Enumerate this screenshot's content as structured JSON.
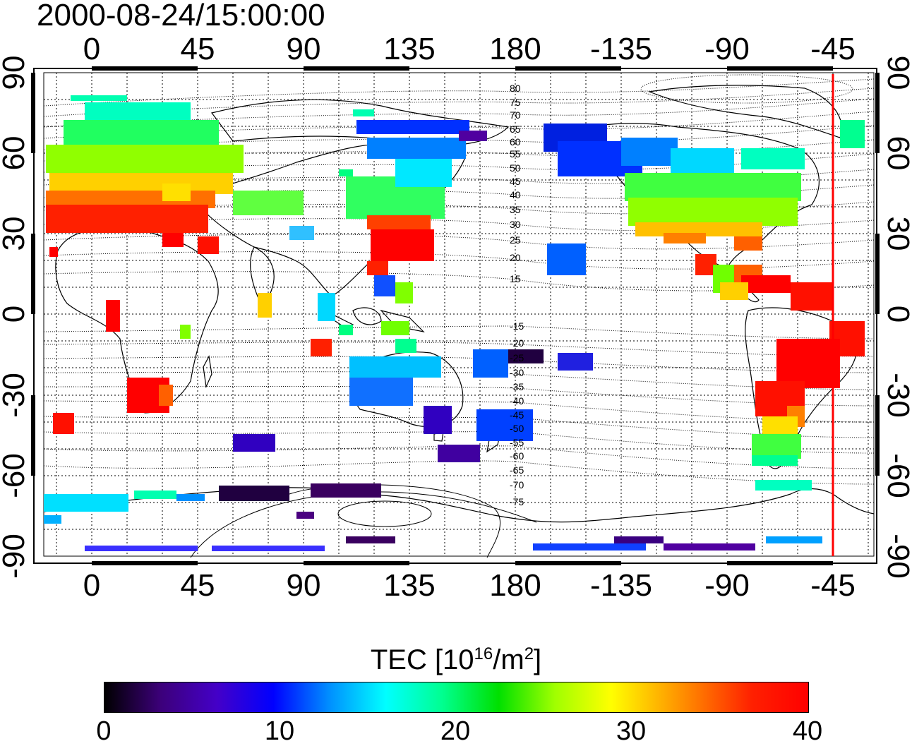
{
  "title": "2000-08-24/15:00:00",
  "map": {
    "top_ticks": [
      "0",
      "45",
      "90",
      "135",
      "180",
      "-135",
      "-90",
      "-45"
    ],
    "bottom_ticks": [
      "0",
      "45",
      "90",
      "135",
      "180",
      "-135",
      "-90",
      "-45"
    ],
    "left_ticks": [
      "90",
      "60",
      "30",
      "0",
      "-30",
      "-60",
      "-90"
    ],
    "right_ticks": [
      "90",
      "60",
      "30",
      "0",
      "-30",
      "-60",
      "-90"
    ],
    "contour_labels": [
      "80",
      "75",
      "70",
      "65",
      "60",
      "55",
      "50",
      "45",
      "40",
      "35",
      "30",
      "25",
      "20",
      "15",
      "-15",
      "-20",
      "-25",
      "-30",
      "-35",
      "-40",
      "-45",
      "-50",
      "-55",
      "-60",
      "-65",
      "-70",
      "-75"
    ],
    "meridian_marker_color": "#ff0000"
  },
  "colorbar": {
    "title_prefix": "TEC  [10",
    "title_exp1": "16",
    "title_mid": "/m",
    "title_exp2": "2",
    "title_suffix": "]",
    "ticks": [
      "0",
      "10",
      "20",
      "30",
      "40"
    ],
    "range": [
      0,
      40
    ]
  }
}
